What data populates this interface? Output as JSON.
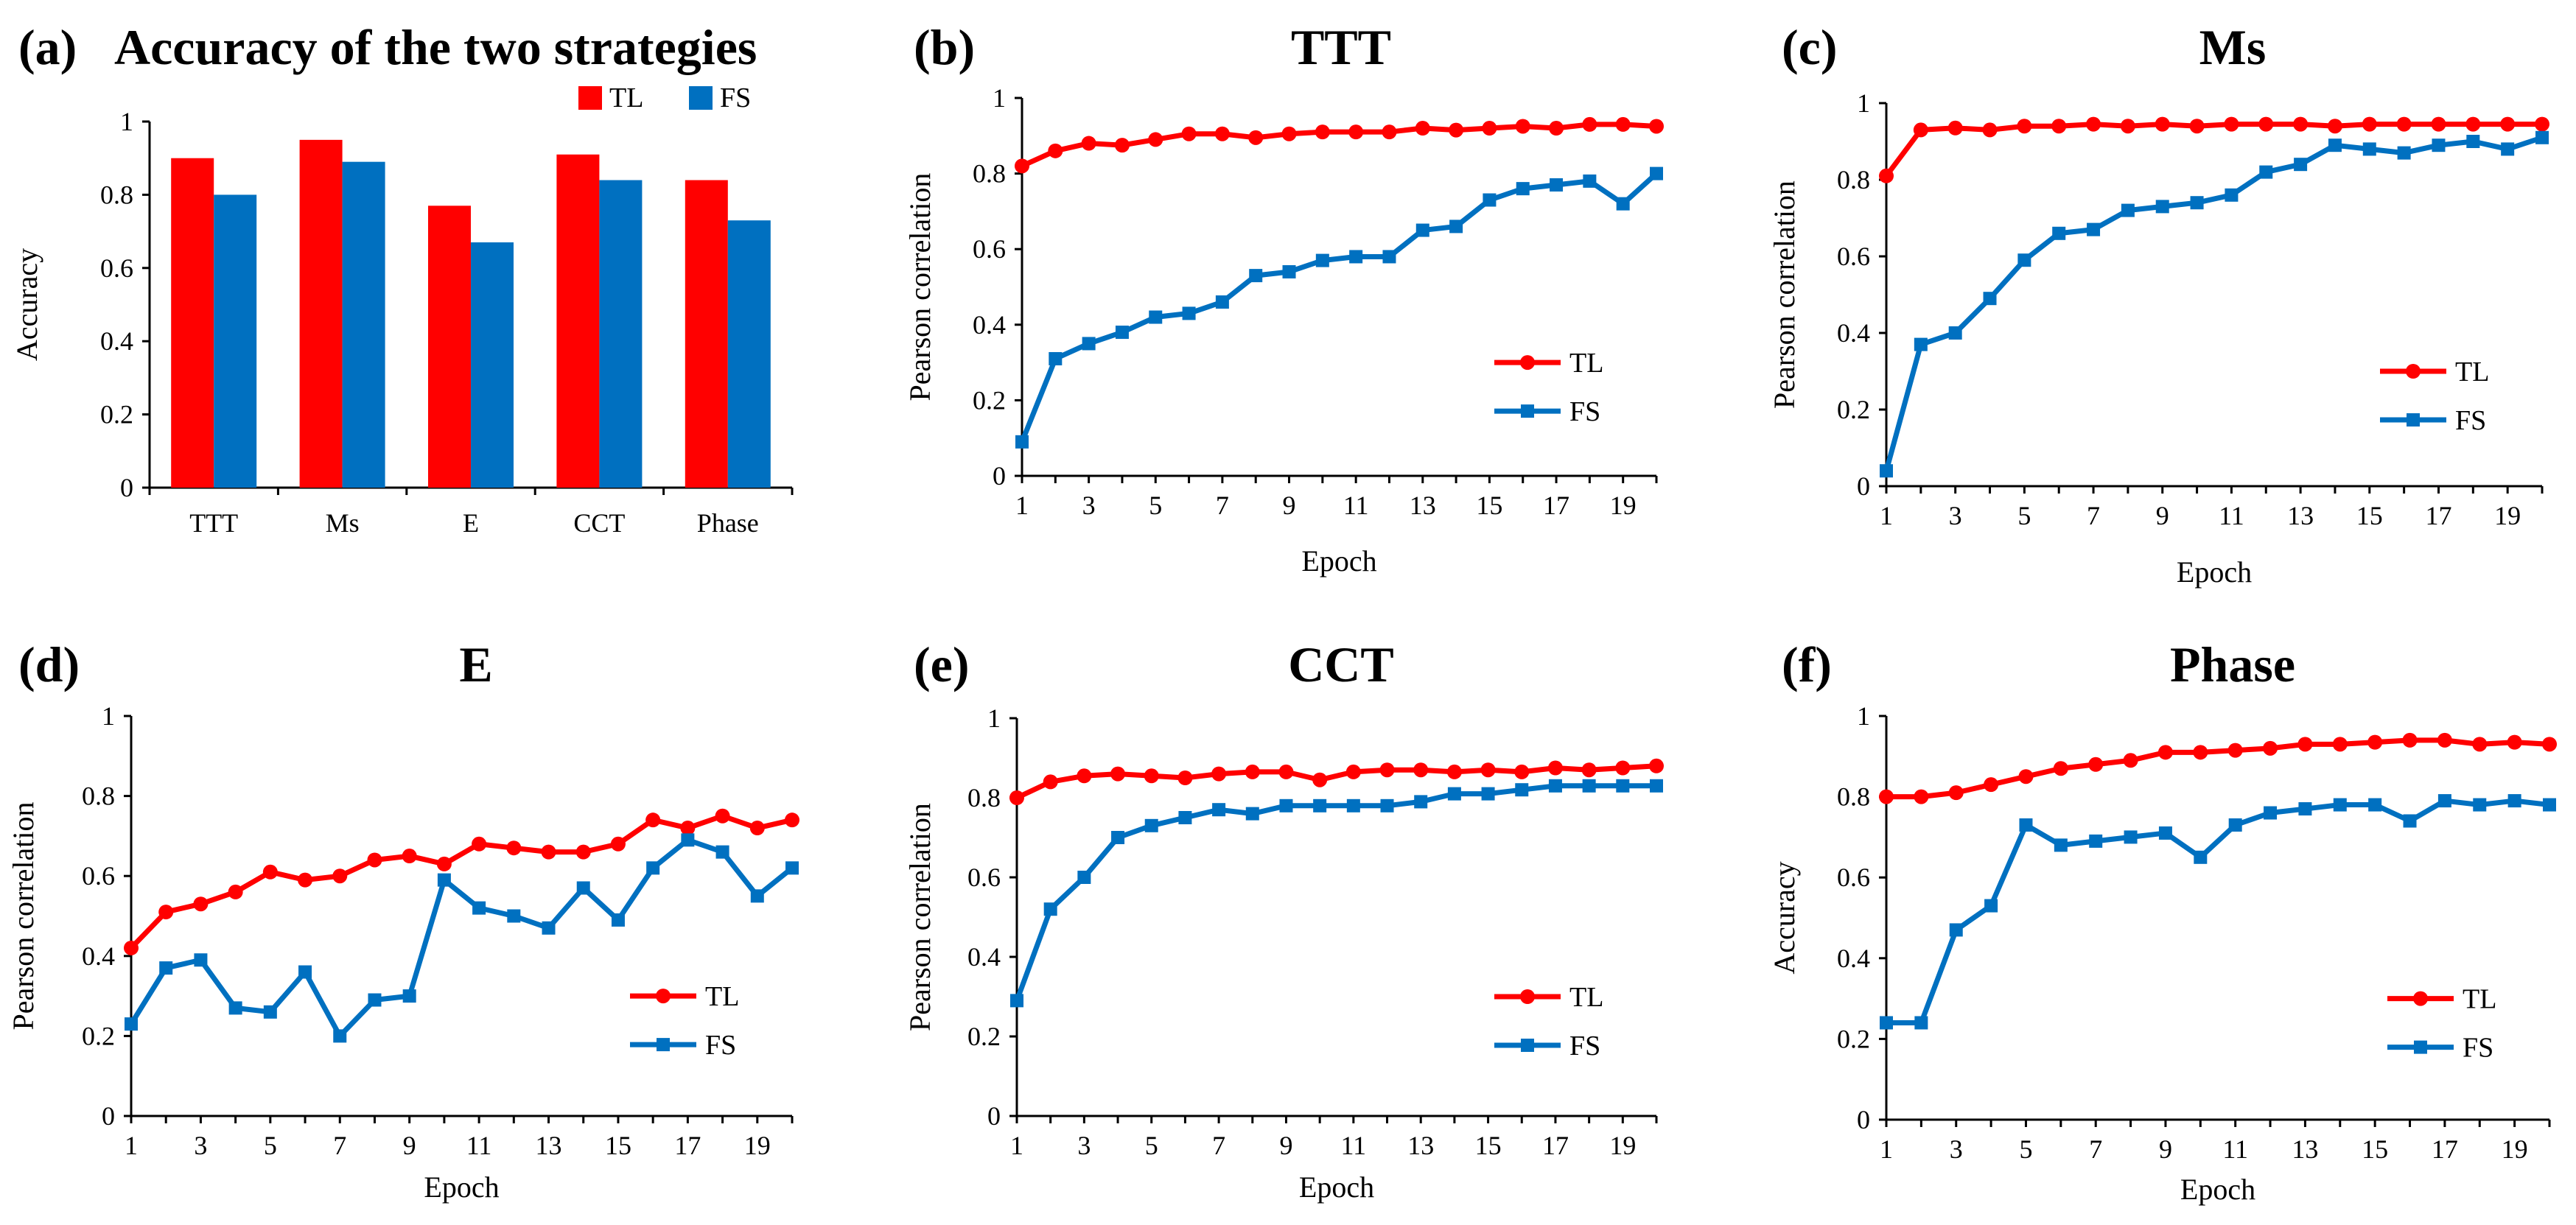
{
  "colors": {
    "TL": "#ff0000",
    "FS": "#0070c0"
  },
  "chart_data": [
    {
      "id": "a",
      "type": "bar",
      "panel_label": "(a)",
      "title": "Accuracy of the two strategies",
      "ylabel": "Accuracy",
      "xlabel": "",
      "ylim": [
        0,
        1
      ],
      "yticks": [
        0,
        0.2,
        0.4,
        0.6,
        0.8,
        1
      ],
      "categories": [
        "TTT",
        "Ms",
        "E",
        "CCT",
        "Phase"
      ],
      "series": [
        {
          "name": "TL",
          "values": [
            0.9,
            0.95,
            0.77,
            0.91,
            0.84
          ]
        },
        {
          "name": "FS",
          "values": [
            0.8,
            0.89,
            0.67,
            0.84,
            0.73
          ]
        }
      ],
      "legend": "top-right"
    },
    {
      "id": "b",
      "type": "line",
      "panel_label": "(b)",
      "title": "TTT",
      "xlabel": "Epoch",
      "ylabel": "Pearson correlation",
      "ylim": [
        0,
        1
      ],
      "yticks": [
        0,
        0.2,
        0.4,
        0.6,
        0.8,
        1
      ],
      "xticks": [
        1,
        3,
        5,
        7,
        9,
        11,
        13,
        15,
        17,
        19
      ],
      "x": [
        1,
        2,
        3,
        4,
        5,
        6,
        7,
        8,
        9,
        10,
        11,
        12,
        13,
        14,
        15,
        16,
        17,
        18,
        19,
        20
      ],
      "series": [
        {
          "name": "TL",
          "marker": "circle",
          "values": [
            0.82,
            0.86,
            0.88,
            0.875,
            0.89,
            0.905,
            0.905,
            0.895,
            0.905,
            0.91,
            0.91,
            0.91,
            0.92,
            0.915,
            0.92,
            0.925,
            0.92,
            0.93,
            0.93,
            0.925
          ]
        },
        {
          "name": "FS",
          "marker": "square",
          "values": [
            0.09,
            0.31,
            0.35,
            0.38,
            0.42,
            0.43,
            0.46,
            0.53,
            0.54,
            0.57,
            0.58,
            0.58,
            0.65,
            0.66,
            0.73,
            0.76,
            0.77,
            0.78,
            0.72,
            0.8
          ]
        }
      ],
      "legend": "bottom-right"
    },
    {
      "id": "c",
      "type": "line",
      "panel_label": "(c)",
      "title": "Ms",
      "xlabel": "Epoch",
      "ylabel": "Pearson correlation",
      "ylim": [
        0,
        1
      ],
      "yticks": [
        0,
        0.2,
        0.4,
        0.6,
        0.8,
        1
      ],
      "xticks": [
        1,
        3,
        5,
        7,
        9,
        11,
        13,
        15,
        17,
        19
      ],
      "x": [
        1,
        2,
        3,
        4,
        5,
        6,
        7,
        8,
        9,
        10,
        11,
        12,
        13,
        14,
        15,
        16,
        17,
        18,
        19,
        20
      ],
      "series": [
        {
          "name": "TL",
          "marker": "circle",
          "values": [
            0.81,
            0.93,
            0.935,
            0.93,
            0.94,
            0.94,
            0.945,
            0.94,
            0.945,
            0.94,
            0.945,
            0.945,
            0.945,
            0.94,
            0.945,
            0.945,
            0.945,
            0.945,
            0.945,
            0.945
          ]
        },
        {
          "name": "FS",
          "marker": "square",
          "values": [
            0.04,
            0.37,
            0.4,
            0.49,
            0.59,
            0.66,
            0.67,
            0.72,
            0.73,
            0.74,
            0.76,
            0.82,
            0.84,
            0.89,
            0.88,
            0.87,
            0.89,
            0.9,
            0.88,
            0.91
          ]
        }
      ],
      "legend": "bottom-right"
    },
    {
      "id": "d",
      "type": "line",
      "panel_label": "(d)",
      "title": "E",
      "xlabel": "Epoch",
      "ylabel": "Pearson correlation",
      "ylim": [
        0,
        1
      ],
      "yticks": [
        0,
        0.2,
        0.4,
        0.6,
        0.8,
        1
      ],
      "xticks": [
        1,
        3,
        5,
        7,
        9,
        11,
        13,
        15,
        17,
        19
      ],
      "x": [
        1,
        2,
        3,
        4,
        5,
        6,
        7,
        8,
        9,
        10,
        11,
        12,
        13,
        14,
        15,
        16,
        17,
        18,
        19,
        20
      ],
      "series": [
        {
          "name": "TL",
          "marker": "circle",
          "values": [
            0.42,
            0.51,
            0.53,
            0.56,
            0.61,
            0.59,
            0.6,
            0.64,
            0.65,
            0.63,
            0.68,
            0.67,
            0.66,
            0.66,
            0.68,
            0.74,
            0.72,
            0.75,
            0.72,
            0.74
          ]
        },
        {
          "name": "FS",
          "marker": "square",
          "values": [
            0.23,
            0.37,
            0.39,
            0.27,
            0.26,
            0.36,
            0.2,
            0.29,
            0.3,
            0.59,
            0.52,
            0.5,
            0.47,
            0.57,
            0.49,
            0.62,
            0.69,
            0.66,
            0.55,
            0.62
          ]
        }
      ],
      "legend": "bottom-right"
    },
    {
      "id": "e",
      "type": "line",
      "panel_label": "(e)",
      "title": "CCT",
      "xlabel": "Epoch",
      "ylabel": "Pearson correlation",
      "ylim": [
        0,
        1
      ],
      "yticks": [
        0,
        0.2,
        0.4,
        0.6,
        0.8,
        1
      ],
      "xticks": [
        1,
        3,
        5,
        7,
        9,
        11,
        13,
        15,
        17,
        19
      ],
      "x": [
        1,
        2,
        3,
        4,
        5,
        6,
        7,
        8,
        9,
        10,
        11,
        12,
        13,
        14,
        15,
        16,
        17,
        18,
        19,
        20
      ],
      "series": [
        {
          "name": "TL",
          "marker": "circle",
          "values": [
            0.8,
            0.84,
            0.855,
            0.86,
            0.855,
            0.85,
            0.86,
            0.865,
            0.865,
            0.845,
            0.865,
            0.87,
            0.87,
            0.865,
            0.87,
            0.865,
            0.875,
            0.87,
            0.875,
            0.88
          ]
        },
        {
          "name": "FS",
          "marker": "square",
          "values": [
            0.29,
            0.52,
            0.6,
            0.7,
            0.73,
            0.75,
            0.77,
            0.76,
            0.78,
            0.78,
            0.78,
            0.78,
            0.79,
            0.81,
            0.81,
            0.82,
            0.83,
            0.83,
            0.83,
            0.83
          ]
        }
      ],
      "legend": "bottom-right"
    },
    {
      "id": "f",
      "type": "line",
      "panel_label": "(f)",
      "title": "Phase",
      "xlabel": "Epoch",
      "ylabel": "Accuracy",
      "ylim": [
        0,
        1
      ],
      "yticks": [
        0,
        0.2,
        0.4,
        0.6,
        0.8,
        1
      ],
      "xticks": [
        1,
        3,
        5,
        7,
        9,
        11,
        13,
        15,
        17,
        19
      ],
      "x": [
        1,
        2,
        3,
        4,
        5,
        6,
        7,
        8,
        9,
        10,
        11,
        12,
        13,
        14,
        15,
        16,
        17,
        18,
        19,
        20
      ],
      "series": [
        {
          "name": "TL",
          "marker": "circle",
          "values": [
            0.8,
            0.8,
            0.81,
            0.83,
            0.85,
            0.87,
            0.88,
            0.89,
            0.91,
            0.91,
            0.915,
            0.92,
            0.93,
            0.93,
            0.935,
            0.94,
            0.94,
            0.93,
            0.935,
            0.93
          ]
        },
        {
          "name": "FS",
          "marker": "square",
          "values": [
            0.24,
            0.24,
            0.47,
            0.53,
            0.73,
            0.68,
            0.69,
            0.7,
            0.71,
            0.65,
            0.73,
            0.76,
            0.77,
            0.78,
            0.78,
            0.74,
            0.79,
            0.78,
            0.79,
            0.78
          ]
        }
      ],
      "legend": "bottom-right"
    }
  ]
}
